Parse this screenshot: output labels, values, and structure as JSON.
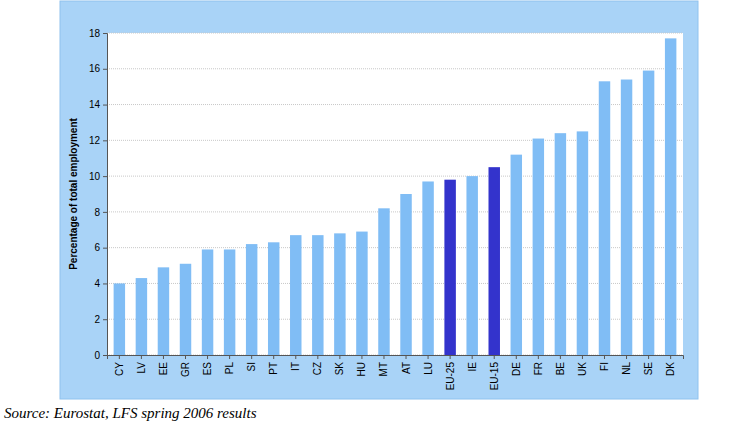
{
  "chart_data": {
    "type": "bar",
    "y_label": "Percentage of total employment",
    "source": "Source: Eurostat, LFS spring 2006 results",
    "categories": [
      "CY",
      "LV",
      "EE",
      "GR",
      "ES",
      "PL",
      "SI",
      "PT",
      "IT",
      "CZ",
      "SK",
      "HU",
      "MT",
      "AT",
      "LU",
      "EU-25",
      "IE",
      "EU-15",
      "DE",
      "FR",
      "BE",
      "UK",
      "FI",
      "NL",
      "SE",
      "DK"
    ],
    "values": [
      4.0,
      4.3,
      4.9,
      5.1,
      5.9,
      5.9,
      6.2,
      6.3,
      6.7,
      6.7,
      6.8,
      6.9,
      8.2,
      9.0,
      9.7,
      9.8,
      10.0,
      10.5,
      11.2,
      12.1,
      12.4,
      12.5,
      15.3,
      15.4,
      15.9,
      17.7
    ],
    "colors": [
      "#80bdf5",
      "#80bdf5",
      "#80bdf5",
      "#80bdf5",
      "#80bdf5",
      "#80bdf5",
      "#80bdf5",
      "#80bdf5",
      "#80bdf5",
      "#80bdf5",
      "#80bdf5",
      "#80bdf5",
      "#80bdf5",
      "#80bdf5",
      "#80bdf5",
      "#3333cc",
      "#80bdf5",
      "#3333cc",
      "#80bdf5",
      "#80bdf5",
      "#80bdf5",
      "#80bdf5",
      "#80bdf5",
      "#80bdf5",
      "#80bdf5",
      "#80bdf5"
    ],
    "ylim": [
      0,
      18
    ],
    "yticks": [
      0,
      2,
      4,
      6,
      8,
      10,
      12,
      14,
      16,
      18
    ],
    "grid": true
  }
}
